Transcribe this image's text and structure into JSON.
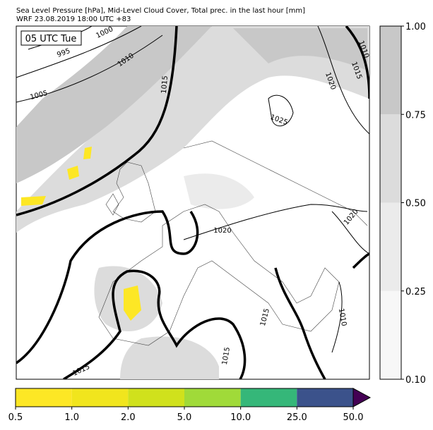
{
  "header": {
    "title": "Sea Level Pressure [hPa], Mid-Level Cloud Cover, Total prec. in the last hour [mm]",
    "subtitle": "WRF 23.08.2019 18:00 UTC +83"
  },
  "map": {
    "time_label": "05 UTC Tue",
    "isobar_labels": [
      "995",
      "1000",
      "1005",
      "1010",
      "1015",
      "1020",
      "1010",
      "1015",
      "1025",
      "1020",
      "1020",
      "1015",
      "1010",
      "1015",
      "1015"
    ]
  },
  "cloud_colorbar": {
    "ticks": [
      {
        "value": 0.1,
        "label": "0.10"
      },
      {
        "value": 0.25,
        "label": "0.25"
      },
      {
        "value": 0.5,
        "label": "0.50"
      },
      {
        "value": 0.75,
        "label": "0.75"
      },
      {
        "value": 1,
        "label": "1.00"
      }
    ],
    "colors": [
      "#f7f7f7",
      "#ebebeb",
      "#dcdcdc",
      "#c8c8c8"
    ]
  },
  "precip_colorbar": {
    "ticks": [
      0.5,
      {
        "value": 1,
        "label": "1.0"
      },
      {
        "value": 2,
        "label": "2.0"
      },
      {
        "value": 5,
        "label": "5.0"
      },
      {
        "value": 10,
        "label": "10.0"
      },
      {
        "value": 25,
        "label": "25.0"
      },
      {
        "value": 50,
        "label": "50.0"
      }
    ],
    "colors": [
      "#fde725",
      "#f1e51d",
      "#d0e11c",
      "#a0da39",
      "#35b779",
      "#3b528b"
    ],
    "extend_color": "#440154"
  }
}
